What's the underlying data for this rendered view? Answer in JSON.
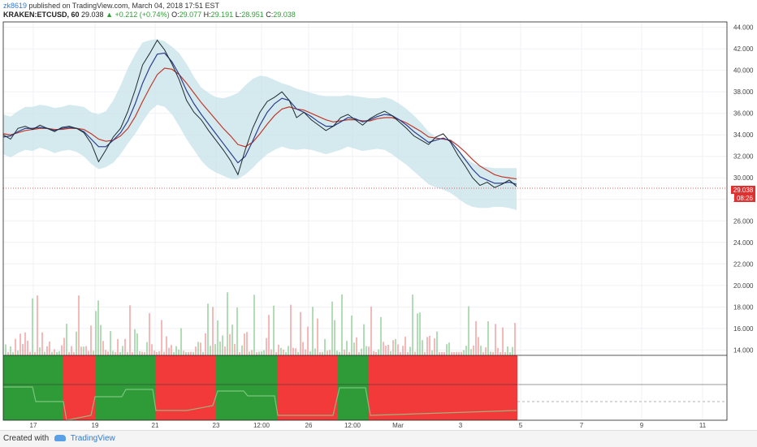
{
  "header": {
    "author": "zk8619",
    "published": "published on TradingView.com, March 04, 2018 17:51 EST"
  },
  "symbol_line": {
    "symbol": "KRAKEN:ETCUSD, 60",
    "last": "29.038",
    "arrow": "▲",
    "change": "+0.212 (+0.74%)",
    "o_label": "O:",
    "o": "29.077",
    "h_label": "H:",
    "h": "29.191",
    "l_label": "L:",
    "l": "28.951",
    "c_label": "C:",
    "c": "29.038"
  },
  "price_labels": {
    "last": "29.038",
    "countdown": "08:26"
  },
  "footer": {
    "created_with": "Created with",
    "brand": "TradingView"
  },
  "colors": {
    "up": "#2e9e35",
    "down": "#e03030",
    "band": "#c7e3ea",
    "green_zone": "#2e9a38",
    "red_zone": "#f23a3a"
  },
  "chart_data": {
    "type": "line",
    "y_ticks": [
      "44.000",
      "42.000",
      "40.000",
      "38.000",
      "36.000",
      "34.000",
      "32.000",
      "30.000",
      "28.000",
      "26.000",
      "24.000",
      "22.000",
      "20.000",
      "18.000",
      "16.000",
      "14.000"
    ],
    "x_ticks": [
      "17",
      "19",
      "21",
      "23",
      "12:00",
      "26",
      "12:00",
      "Mar",
      "3",
      "5",
      "7",
      "9",
      "11"
    ],
    "ylim": [
      13.5,
      44.5
    ],
    "price": [
      34.0,
      33.6,
      34.6,
      34.8,
      34.5,
      34.9,
      34.6,
      34.3,
      34.7,
      34.8,
      34.6,
      34.2,
      33.2,
      31.5,
      32.6,
      33.8,
      34.6,
      36.2,
      38.2,
      40.5,
      41.6,
      42.8,
      41.9,
      40.6,
      39.1,
      37.2,
      36.1,
      35.4,
      34.4,
      33.5,
      32.6,
      31.6,
      30.3,
      32.6,
      34.6,
      36.1,
      37.1,
      37.5,
      38.0,
      37.2,
      35.6,
      36.1,
      35.4,
      34.9,
      34.4,
      34.8,
      35.6,
      35.9,
      35.4,
      34.9,
      35.5,
      35.9,
      36.2,
      35.8,
      35.2,
      34.6,
      33.9,
      33.5,
      33.1,
      33.8,
      34.1,
      33.3,
      32.1,
      31.1,
      30.0,
      29.3,
      29.6,
      29.1,
      29.4,
      29.8,
      29.2
    ],
    "band_upper": [
      35.9,
      35.7,
      36.2,
      36.6,
      36.6,
      36.8,
      36.7,
      36.5,
      36.6,
      36.8,
      36.7,
      36.6,
      36.1,
      35.9,
      36.2,
      37.2,
      38.6,
      40.2,
      41.5,
      42.6,
      42.8,
      42.9,
      42.7,
      42.2,
      41.6,
      40.6,
      39.4,
      38.4,
      37.9,
      37.5,
      37.4,
      37.6,
      37.9,
      38.6,
      39.2,
      39.5,
      39.4,
      39.1,
      38.8,
      38.6,
      38.3,
      38.1,
      37.9,
      37.7,
      37.6,
      37.6,
      37.6,
      37.7,
      37.6,
      37.5,
      37.4,
      37.4,
      37.5,
      37.3,
      36.9,
      36.4,
      35.8,
      35.1,
      34.3,
      33.8,
      33.6,
      33.3,
      32.6,
      31.9,
      31.4,
      31.1,
      31.0,
      30.9,
      30.9,
      30.9,
      30.9
    ],
    "band_lower": [
      32.2,
      31.9,
      32.3,
      32.6,
      32.5,
      32.8,
      32.6,
      32.3,
      32.5,
      32.6,
      32.4,
      32.0,
      31.3,
      30.8,
      31.0,
      31.4,
      32.2,
      33.2,
      34.1,
      35.2,
      36.2,
      36.8,
      36.6,
      35.9,
      34.8,
      33.6,
      32.6,
      31.6,
      30.9,
      30.5,
      30.2,
      29.9,
      29.9,
      30.3,
      30.9,
      31.6,
      32.2,
      32.6,
      32.9,
      32.7,
      32.6,
      32.7,
      32.6,
      32.4,
      32.2,
      32.4,
      32.6,
      32.9,
      32.7,
      32.5,
      32.6,
      32.7,
      32.6,
      32.2,
      31.7,
      31.2,
      30.6,
      30.0,
      29.4,
      29.1,
      28.9,
      28.6,
      28.1,
      27.6,
      27.3,
      27.2,
      27.2,
      27.3,
      27.3,
      27.2,
      27.0
    ],
    "ma_fast": [
      33.8,
      33.9,
      34.3,
      34.6,
      34.6,
      34.7,
      34.6,
      34.4,
      34.6,
      34.7,
      34.6,
      34.3,
      33.6,
      32.9,
      32.9,
      33.5,
      34.2,
      35.3,
      36.9,
      38.8,
      40.3,
      41.5,
      41.6,
      40.8,
      39.6,
      38.1,
      36.9,
      35.9,
      35.0,
      34.1,
      33.2,
      32.3,
      31.4,
      32.0,
      33.4,
      34.9,
      36.1,
      36.9,
      37.4,
      37.2,
      36.4,
      36.1,
      35.7,
      35.2,
      34.8,
      34.8,
      35.2,
      35.6,
      35.5,
      35.2,
      35.4,
      35.7,
      35.9,
      35.8,
      35.4,
      34.9,
      34.3,
      33.8,
      33.3,
      33.5,
      33.7,
      33.4,
      32.6,
      31.7,
      30.8,
      30.1,
      29.8,
      29.5,
      29.5,
      29.6,
      29.4
    ],
    "ma_slow": [
      34.1,
      34.0,
      34.2,
      34.4,
      34.5,
      34.6,
      34.6,
      34.5,
      34.5,
      34.6,
      34.6,
      34.5,
      34.1,
      33.6,
      33.4,
      33.5,
      33.9,
      34.6,
      35.7,
      37.1,
      38.4,
      39.6,
      40.2,
      40.1,
      39.6,
      38.8,
      37.9,
      37.0,
      36.2,
      35.4,
      34.6,
      33.9,
      33.1,
      32.9,
      33.3,
      34.1,
      35.0,
      35.8,
      36.4,
      36.6,
      36.4,
      36.3,
      36.0,
      35.7,
      35.4,
      35.2,
      35.3,
      35.4,
      35.4,
      35.3,
      35.3,
      35.5,
      35.6,
      35.6,
      35.4,
      35.1,
      34.7,
      34.3,
      33.8,
      33.7,
      33.6,
      33.5,
      33.0,
      32.4,
      31.7,
      31.1,
      30.7,
      30.3,
      30.1,
      30.0,
      29.9
    ]
  }
}
